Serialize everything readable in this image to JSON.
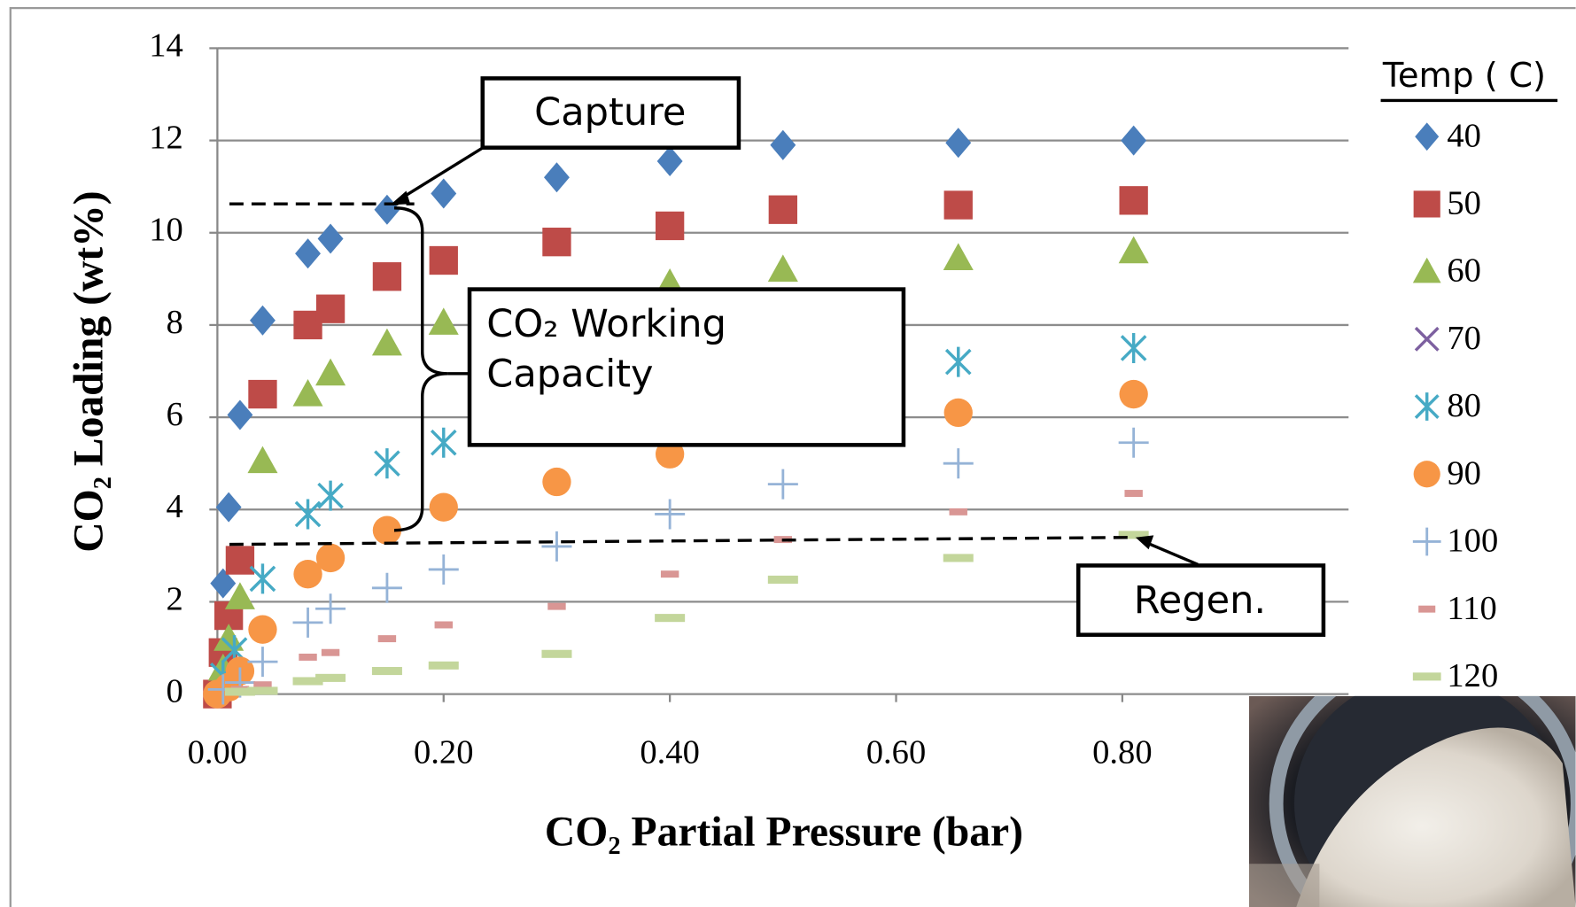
{
  "chart_data": {
    "type": "scatter",
    "xlabel": "CO₂ Partial Pressure (bar)",
    "ylabel": "CO₂ Loading (wt%)",
    "legend_title": "Temp ( C)",
    "legend": "right",
    "grid": true,
    "xlim": [
      0,
      1.0
    ],
    "xticks": [
      {
        "value": 0,
        "label": "0.00"
      },
      {
        "value": 0.2,
        "label": "0.20"
      },
      {
        "value": 0.4,
        "label": "0.40"
      },
      {
        "value": 0.6,
        "label": "0.60"
      },
      {
        "value": 0.8,
        "label": "0.80"
      }
    ],
    "ylim": [
      0,
      14
    ],
    "yticks": [
      0,
      2,
      4,
      6,
      8,
      10,
      12,
      14
    ],
    "annotations": [
      "Capture",
      "CO₂ Working",
      "Capacity",
      "Regen."
    ],
    "series": [
      {
        "name": "40",
        "color": "#4a7ebb",
        "marker": "diamond",
        "x": [
          0.005,
          0.01,
          0.02,
          0.04,
          0.08,
          0.1,
          0.15,
          0.2,
          0.3,
          0.4,
          0.5,
          0.655,
          0.81
        ],
        "values": [
          2.4,
          4.05,
          6.05,
          8.1,
          9.55,
          9.87,
          10.5,
          10.85,
          11.2,
          11.55,
          11.9,
          11.95,
          12.0
        ]
      },
      {
        "name": "50",
        "color": "#be4b48",
        "marker": "square",
        "x": [
          0,
          0.005,
          0.01,
          0.02,
          0.04,
          0.08,
          0.1,
          0.15,
          0.2,
          0.3,
          0.4,
          0.5,
          0.655,
          0.81
        ],
        "values": [
          0,
          0.9,
          1.7,
          2.9,
          6.5,
          8.0,
          8.35,
          9.05,
          9.4,
          9.8,
          10.15,
          10.5,
          10.6,
          10.7
        ]
      },
      {
        "name": "60",
        "color": "#98b954",
        "marker": "triangle",
        "x": [
          0.005,
          0.01,
          0.02,
          0.04,
          0.08,
          0.1,
          0.15,
          0.2,
          0.4,
          0.5,
          0.655,
          0.81
        ],
        "values": [
          0.55,
          1.2,
          2.1,
          5.05,
          6.5,
          6.95,
          7.6,
          8.05,
          8.9,
          9.2,
          9.45,
          9.6
        ]
      },
      {
        "name": "70",
        "color": "#7d60a0",
        "marker": "cross",
        "x": [],
        "values": []
      },
      {
        "name": "80",
        "color": "#46aac5",
        "marker": "star",
        "x": [
          0.005,
          0.015,
          0.04,
          0.08,
          0.1,
          0.15,
          0.2,
          0.655,
          0.81
        ],
        "values": [
          0.4,
          0.95,
          2.5,
          3.9,
          4.3,
          5.0,
          5.45,
          7.2,
          7.5
        ]
      },
      {
        "name": "90",
        "color": "#f79646",
        "marker": "circle",
        "x": [
          0,
          0.01,
          0.02,
          0.04,
          0.08,
          0.1,
          0.15,
          0.2,
          0.3,
          0.4,
          0.655,
          0.81
        ],
        "values": [
          0,
          0.15,
          0.5,
          1.4,
          2.6,
          2.95,
          3.55,
          4.05,
          4.6,
          5.2,
          6.1,
          6.5
        ]
      },
      {
        "name": "100",
        "color": "#95b3d7",
        "marker": "plus",
        "x": [
          0.005,
          0.02,
          0.04,
          0.08,
          0.1,
          0.15,
          0.2,
          0.3,
          0.4,
          0.5,
          0.655,
          0.81
        ],
        "values": [
          0.1,
          0.25,
          0.7,
          1.55,
          1.85,
          2.3,
          2.7,
          3.2,
          3.9,
          4.55,
          5.0,
          5.45
        ]
      },
      {
        "name": "110",
        "color": "#d99694",
        "marker": "dash",
        "x": [
          0.02,
          0.04,
          0.08,
          0.1,
          0.15,
          0.2,
          0.3,
          0.4,
          0.5,
          0.655,
          0.81
        ],
        "values": [
          0.1,
          0.2,
          0.8,
          0.9,
          1.2,
          1.5,
          1.9,
          2.6,
          3.35,
          3.95,
          4.35
        ]
      },
      {
        "name": "120",
        "color": "#c3d69b",
        "marker": "longdash",
        "x": [
          0.02,
          0.04,
          0.08,
          0.1,
          0.15,
          0.2,
          0.3,
          0.4,
          0.5,
          0.655,
          0.81
        ],
        "values": [
          0.05,
          0.07,
          0.28,
          0.35,
          0.5,
          0.62,
          0.87,
          1.65,
          2.48,
          2.95,
          3.45
        ]
      }
    ]
  }
}
